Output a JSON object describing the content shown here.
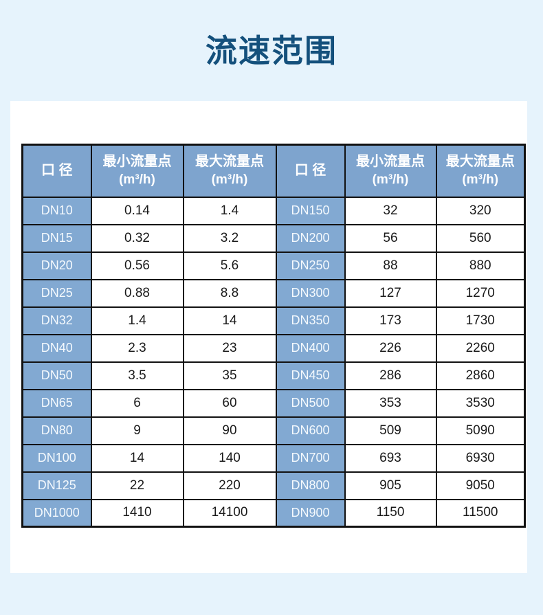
{
  "page": {
    "title": "流速范围",
    "background_color": "#e6f3fc",
    "card_color": "#ffffff",
    "title_color": "#14507c"
  },
  "table": {
    "header_background": "#7ea4ce",
    "row_label_background": "#82a9d2",
    "border_color": "#111111",
    "columns": [
      {
        "label": "口 径",
        "unit": ""
      },
      {
        "label": "最小流量点",
        "unit": "(m³/h)"
      },
      {
        "label": "最大流量点",
        "unit": "(m³/h)"
      },
      {
        "label": "口 径",
        "unit": ""
      },
      {
        "label": "最小流量点",
        "unit": "(m³/h)"
      },
      {
        "label": "最大流量点",
        "unit": "(m³/h)"
      }
    ],
    "rows": [
      [
        "DN10",
        "0.14",
        "1.4",
        "DN150",
        "32",
        "320"
      ],
      [
        "DN15",
        "0.32",
        "3.2",
        "DN200",
        "56",
        "560"
      ],
      [
        "DN20",
        "0.56",
        "5.6",
        "DN250",
        "88",
        "880"
      ],
      [
        "DN25",
        "0.88",
        "8.8",
        "DN300",
        "127",
        "1270"
      ],
      [
        "DN32",
        "1.4",
        "14",
        "DN350",
        "173",
        "1730"
      ],
      [
        "DN40",
        "2.3",
        "23",
        "DN400",
        "226",
        "2260"
      ],
      [
        "DN50",
        "3.5",
        "35",
        "DN450",
        "286",
        "2860"
      ],
      [
        "DN65",
        "6",
        "60",
        "DN500",
        "353",
        "3530"
      ],
      [
        "DN80",
        "9",
        "90",
        "DN600",
        "509",
        "5090"
      ],
      [
        "DN100",
        "14",
        "140",
        "DN700",
        "693",
        "6930"
      ],
      [
        "DN125",
        "22",
        "220",
        "DN800",
        "905",
        "9050"
      ],
      [
        "DN1000",
        "1410",
        "14100",
        "DN900",
        "1150",
        "11500"
      ]
    ]
  }
}
